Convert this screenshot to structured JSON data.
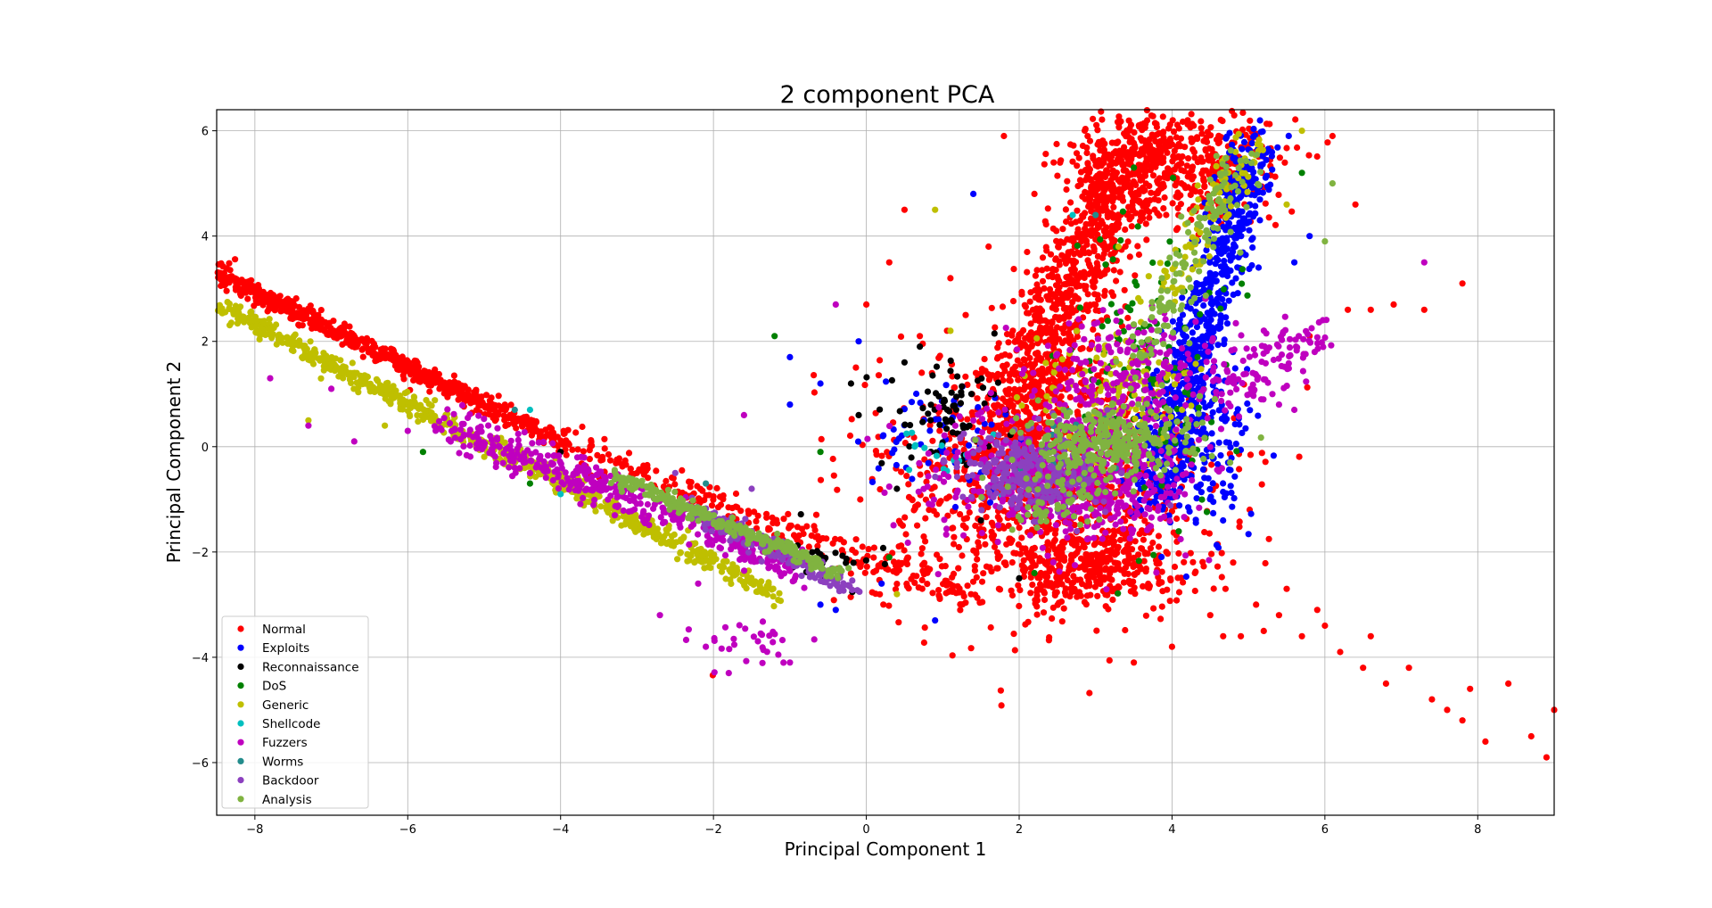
{
  "chart_data": {
    "type": "scatter",
    "title": "2 component PCA",
    "xlabel": "Principal Component 1",
    "ylabel": "Principal Component 2",
    "xlim": [
      -8.5,
      9.0
    ],
    "ylim": [
      -7.0,
      6.4
    ],
    "xticks": [
      -8,
      -6,
      -4,
      -2,
      0,
      2,
      4,
      6,
      8
    ],
    "yticks": [
      -6,
      -4,
      -2,
      0,
      2,
      4,
      6
    ],
    "xtick_labels": [
      "−8",
      "−6",
      "−4",
      "−2",
      "0",
      "2",
      "4",
      "6",
      "8"
    ],
    "ytick_labels": [
      "−6",
      "−4",
      "−2",
      "0",
      "2",
      "4",
      "6"
    ],
    "grid": true,
    "legend_position": "lower-left",
    "series": [
      {
        "name": "Normal",
        "color": "#ff0000",
        "clusters": [
          {
            "from": [
              -8.5,
              3.3
            ],
            "to": [
              -4.0,
              0.1
            ],
            "spread": 0.1,
            "n": 650
          },
          {
            "from": [
              -4.0,
              0.1
            ],
            "to": [
              1.5,
              -3.0
            ],
            "spread": 0.15,
            "n": 250
          },
          {
            "center": [
              2.3,
              -0.7
            ],
            "sx": 1.1,
            "sy": 1.3,
            "n": 1100
          },
          {
            "from": [
              1.8,
              0.0
            ],
            "to": [
              3.5,
              5.8
            ],
            "spread": 0.45,
            "n": 950
          },
          {
            "center": [
              4.1,
              5.4
            ],
            "sx": 0.65,
            "sy": 0.55,
            "n": 500
          },
          {
            "center": [
              3.0,
              -2.3
            ],
            "sx": 0.6,
            "sy": 0.35,
            "n": 300
          }
        ],
        "points": [
          [
            4.3,
            -2.4
          ],
          [
            4.7,
            -2.7
          ],
          [
            5.1,
            -3.0
          ],
          [
            5.4,
            -3.2
          ],
          [
            5.7,
            -3.6
          ],
          [
            6.0,
            -3.4
          ],
          [
            6.2,
            -3.9
          ],
          [
            6.5,
            -4.2
          ],
          [
            6.8,
            -4.5
          ],
          [
            7.1,
            -4.2
          ],
          [
            7.4,
            -4.8
          ],
          [
            7.6,
            -5.0
          ],
          [
            7.9,
            -4.6
          ],
          [
            8.1,
            -5.6
          ],
          [
            8.4,
            -4.5
          ],
          [
            8.7,
            -5.5
          ],
          [
            8.9,
            -5.9
          ],
          [
            9.0,
            -5.0
          ],
          [
            7.8,
            -5.2
          ],
          [
            6.6,
            -3.6
          ],
          [
            5.2,
            -3.5
          ],
          [
            5.9,
            -3.1
          ],
          [
            4.9,
            -3.6
          ],
          [
            4.5,
            -3.2
          ],
          [
            3.5,
            -4.1
          ],
          [
            4.0,
            -3.8
          ],
          [
            4.8,
            -2.2
          ],
          [
            5.5,
            -2.7
          ],
          [
            6.3,
            2.6
          ],
          [
            6.6,
            2.6
          ],
          [
            6.9,
            2.7
          ],
          [
            7.3,
            2.6
          ],
          [
            7.8,
            3.1
          ],
          [
            1.6,
            3.8
          ],
          [
            1.3,
            2.5
          ],
          [
            1.1,
            3.2
          ],
          [
            0.7,
            2.1
          ],
          [
            0.3,
            3.5
          ],
          [
            0.0,
            2.7
          ],
          [
            0.5,
            4.5
          ],
          [
            1.8,
            5.9
          ],
          [
            2.2,
            4.8
          ],
          [
            6.4,
            4.6
          ],
          [
            6.1,
            5.9
          ],
          [
            5.8,
            2.1
          ]
        ]
      },
      {
        "name": "Exploits",
        "color": "#0000ff",
        "clusters": [
          {
            "from": [
              3.7,
              -1.0
            ],
            "to": [
              5.1,
              5.7
            ],
            "spread": 0.28,
            "n": 650
          },
          {
            "center": [
              4.3,
              0.2
            ],
            "sx": 0.35,
            "sy": 0.9,
            "n": 220
          },
          {
            "center": [
              1.0,
              0.3
            ],
            "sx": 0.5,
            "sy": 0.55,
            "n": 60
          }
        ],
        "points": [
          [
            -1.0,
            1.7
          ],
          [
            -0.6,
            1.2
          ],
          [
            -0.1,
            2.0
          ],
          [
            1.4,
            4.8
          ],
          [
            -1.0,
            0.8
          ],
          [
            -0.4,
            -3.1
          ],
          [
            0.9,
            -3.3
          ],
          [
            0.2,
            -2.6
          ],
          [
            5.8,
            4.0
          ],
          [
            5.6,
            3.5
          ],
          [
            -0.6,
            -3.0
          ]
        ]
      },
      {
        "name": "Reconnaissance",
        "color": "#000000",
        "clusters": [
          {
            "center": [
              1.1,
              0.6
            ],
            "sx": 0.45,
            "sy": 0.5,
            "n": 70
          },
          {
            "center": [
              -0.5,
              -2.1
            ],
            "sx": 0.4,
            "sy": 0.3,
            "n": 25
          }
        ],
        "points": [
          [
            0.7,
            1.9
          ],
          [
            0.5,
            1.6
          ],
          [
            -0.2,
            1.2
          ],
          [
            -0.1,
            0.6
          ],
          [
            -4.0,
            -0.1
          ],
          [
            1.5,
            -1.4
          ],
          [
            2.0,
            -2.5
          ],
          [
            0.4,
            -0.8
          ]
        ]
      },
      {
        "name": "DoS",
        "color": "#008000",
        "clusters": [
          {
            "center": [
              3.7,
              1.4
            ],
            "sx": 0.5,
            "sy": 1.6,
            "n": 120
          }
        ],
        "points": [
          [
            -1.2,
            2.1
          ],
          [
            -0.6,
            -0.1
          ],
          [
            -4.4,
            -0.7
          ],
          [
            -5.8,
            -0.1
          ],
          [
            -3.1,
            -0.6
          ],
          [
            0.3,
            -2.1
          ],
          [
            5.7,
            5.2
          ],
          [
            2.2,
            -2.4
          ],
          [
            3.5,
            5.3
          ]
        ]
      },
      {
        "name": "Generic",
        "color": "#bfbf00",
        "clusters": [
          {
            "from": [
              -8.5,
              2.7
            ],
            "to": [
              -1.2,
              -2.8
            ],
            "spread": 0.1,
            "n": 750
          },
          {
            "center": [
              3.2,
              1.1
            ],
            "sx": 0.5,
            "sy": 0.6,
            "n": 140
          },
          {
            "from": [
              3.8,
              2.8
            ],
            "to": [
              5.1,
              5.8
            ],
            "spread": 0.25,
            "n": 90
          }
        ],
        "points": [
          [
            -7.3,
            0.5
          ],
          [
            -6.3,
            0.4
          ],
          [
            0.9,
            4.5
          ],
          [
            1.1,
            2.2
          ],
          [
            5.5,
            4.6
          ],
          [
            5.7,
            6.0
          ],
          [
            3.3,
            3.8
          ],
          [
            0.4,
            -2.8
          ]
        ]
      },
      {
        "name": "Shellcode",
        "color": "#00bfbf",
        "clusters": [
          {
            "center": [
              1.0,
              -0.1
            ],
            "sx": 0.35,
            "sy": 0.3,
            "n": 15
          }
        ],
        "points": [
          [
            -4.4,
            0.7
          ],
          [
            -4.0,
            -0.9
          ],
          [
            2.7,
            4.4
          ],
          [
            3.9,
            2.3
          ]
        ]
      },
      {
        "name": "Fuzzers",
        "color": "#bf00bf",
        "clusters": [
          {
            "from": [
              -5.5,
              0.4
            ],
            "to": [
              -0.8,
              -2.3
            ],
            "spread": 0.18,
            "n": 450
          },
          {
            "center": [
              2.6,
              -0.6
            ],
            "sx": 0.8,
            "sy": 0.6,
            "n": 650
          },
          {
            "center": [
              3.5,
              1.3
            ],
            "sx": 0.6,
            "sy": 0.6,
            "n": 220
          },
          {
            "from": [
              4.5,
              1.0
            ],
            "to": [
              6.0,
              2.2
            ],
            "spread": 0.3,
            "n": 110
          },
          {
            "center": [
              -1.5,
              -3.7
            ],
            "sx": 0.35,
            "sy": 0.2,
            "n": 30
          }
        ],
        "points": [
          [
            -7.8,
            1.3
          ],
          [
            -7.3,
            0.4
          ],
          [
            -6.7,
            0.1
          ],
          [
            -6.0,
            0.3
          ],
          [
            -7.0,
            1.1
          ],
          [
            -2.7,
            -3.2
          ],
          [
            -2.1,
            -3.8
          ],
          [
            -1.0,
            -4.1
          ],
          [
            -1.8,
            -4.3
          ],
          [
            -2.2,
            -2.6
          ],
          [
            -1.6,
            0.6
          ],
          [
            7.3,
            3.5
          ],
          [
            5.4,
            0.8
          ],
          [
            5.6,
            0.7
          ],
          [
            -0.4,
            2.7
          ]
        ]
      },
      {
        "name": "Worms",
        "color": "#238c8c",
        "clusters": [
          {
            "center": [
              2.5,
              0.0
            ],
            "sx": 0.6,
            "sy": 0.5,
            "n": 12
          }
        ],
        "points": [
          [
            -4.6,
            0.7
          ],
          [
            3.0,
            4.4
          ],
          [
            -2.1,
            -0.7
          ]
        ]
      },
      {
        "name": "Backdoor",
        "color": "#8c40bf",
        "clusters": [
          {
            "center": [
              2.1,
              -0.5
            ],
            "sx": 0.5,
            "sy": 0.4,
            "n": 260
          },
          {
            "from": [
              -2.3,
              -1.2
            ],
            "to": [
              -0.2,
              -2.7
            ],
            "spread": 0.12,
            "n": 160
          }
        ],
        "points": [
          [
            -3.1,
            -0.6
          ],
          [
            -2.5,
            -0.5
          ],
          [
            -1.5,
            -0.8
          ]
        ]
      },
      {
        "name": "Analysis",
        "color": "#80b340",
        "clusters": [
          {
            "from": [
              -3.3,
              -0.6
            ],
            "to": [
              -0.3,
              -2.4
            ],
            "spread": 0.08,
            "n": 260
          },
          {
            "center": [
              3.1,
              0.1
            ],
            "sx": 0.55,
            "sy": 0.35,
            "n": 320
          },
          {
            "center": [
              2.5,
              -1.0
            ],
            "sx": 0.4,
            "sy": 0.3,
            "n": 60
          },
          {
            "from": [
              3.5,
              1.5
            ],
            "to": [
              5.0,
              5.5
            ],
            "spread": 0.25,
            "n": 140
          }
        ],
        "points": [
          [
            6.0,
            3.9
          ],
          [
            6.1,
            5.0
          ],
          [
            3.9,
            2.3
          ]
        ]
      }
    ]
  }
}
